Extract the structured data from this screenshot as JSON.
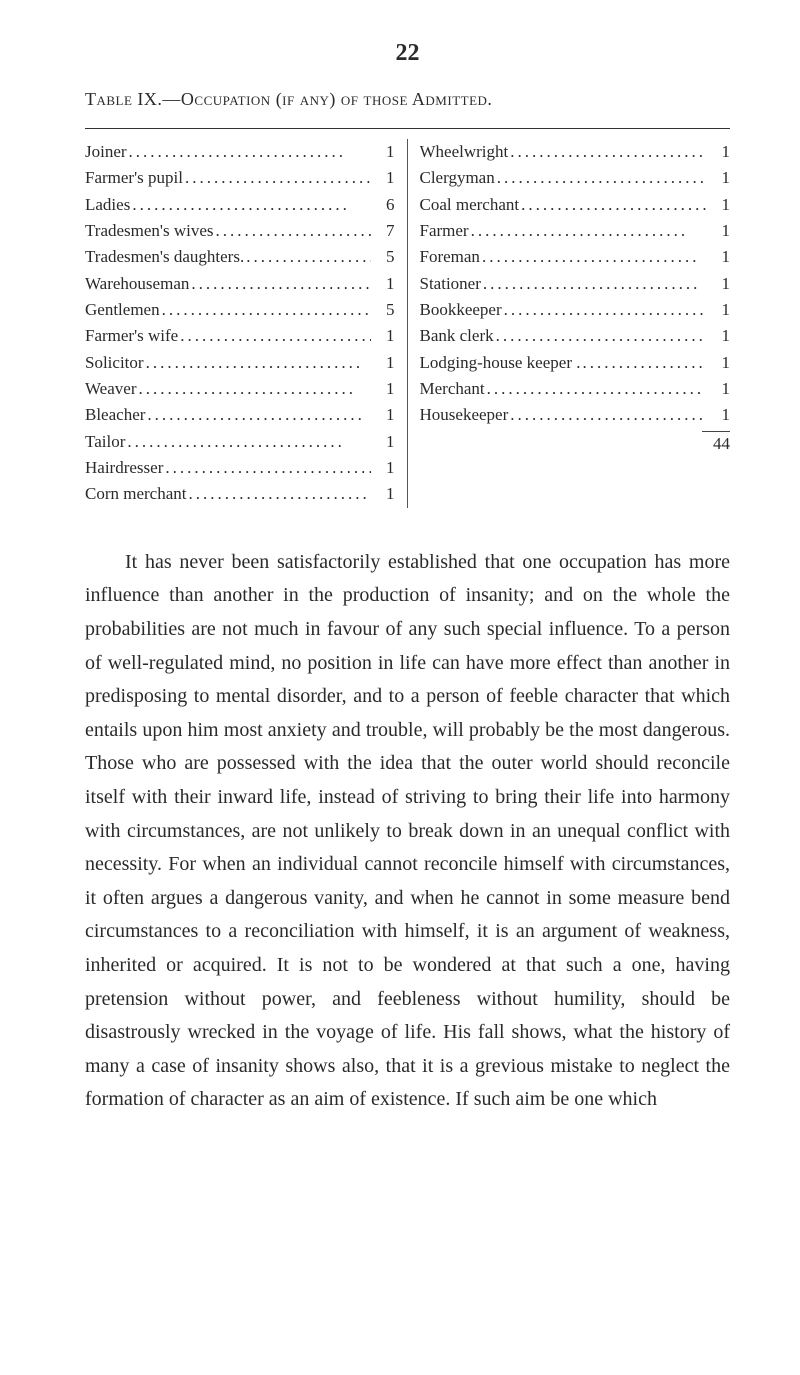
{
  "page_number": "22",
  "table_title_prefix": "Table IX.—Occupation (if any) of those Admitted.",
  "left_column": [
    {
      "label": "Joiner",
      "value": "1"
    },
    {
      "label": "Farmer's pupil",
      "value": "1"
    },
    {
      "label": "Ladies",
      "value": "6"
    },
    {
      "label": "Tradesmen's wives",
      "value": "7"
    },
    {
      "label": "Tradesmen's daughters.",
      "value": "5"
    },
    {
      "label": "Warehouseman",
      "value": "1"
    },
    {
      "label": "Gentlemen",
      "value": "5"
    },
    {
      "label": "Farmer's wife",
      "value": "1"
    },
    {
      "label": "Solicitor",
      "value": "1"
    },
    {
      "label": "Weaver",
      "value": "1"
    },
    {
      "label": "Bleacher",
      "value": "1"
    },
    {
      "label": "Tailor",
      "value": "1"
    },
    {
      "label": "Hairdresser",
      "value": "1"
    },
    {
      "label": "Corn merchant",
      "value": "1"
    }
  ],
  "right_column": [
    {
      "label": "Wheelwright",
      "value": "1"
    },
    {
      "label": "Clergyman",
      "value": "1"
    },
    {
      "label": "Coal merchant",
      "value": "1"
    },
    {
      "label": "Farmer",
      "value": "1"
    },
    {
      "label": "Foreman",
      "value": "1"
    },
    {
      "label": "Stationer",
      "value": "1"
    },
    {
      "label": "Bookkeeper",
      "value": "1"
    },
    {
      "label": "Bank clerk",
      "value": "1"
    },
    {
      "label": "Lodging-house keeper .",
      "value": "1"
    },
    {
      "label": "Merchant",
      "value": "1"
    },
    {
      "label": "Housekeeper",
      "value": "1"
    }
  ],
  "total": "44",
  "body_paragraph": "It has never been satisfactorily established that one occupation has more influence than another in the production of insanity; and on the whole the probabilities are not much in favour of any such special influence. To a person of well-regulated mind, no position in life can have more effect than another in predisposing to mental disorder, and to a person of feeble character that which entails upon him most anxiety and trouble, will probably be the most dangerous. Those who are possessed with the idea that the outer world should reconcile itself with their inward life, instead of striving to bring their life into harmony with circumstances, are not unlikely to break down in an unequal conflict with necessity. For when an individual cannot reconcile himself with circumstances, it often argues a dangerous vanity, and when he cannot in some measure bend circumstances to a reconciliation with himself, it is an argument of weakness, inherited or acquired. It is not to be wondered at that such a one, having pretension without power, and feebleness without humility, should be disastrously wrecked in the voyage of life. His fall shows, what the history of many a case of insanity shows also, that it is a grevious mistake to neglect the formation of character as an aim of existence. If such aim be one which"
}
